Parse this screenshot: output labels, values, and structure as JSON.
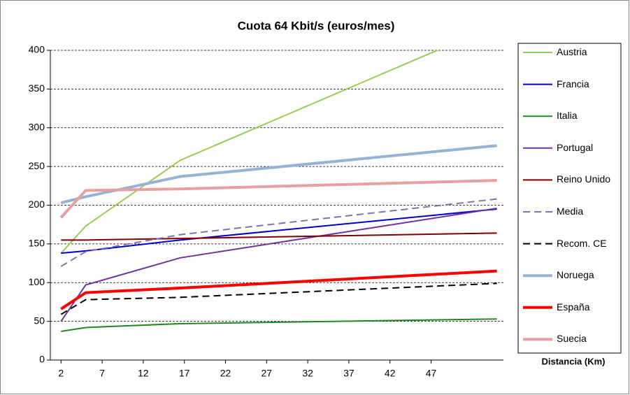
{
  "chart_data": {
    "type": "line",
    "title": "Cuota 64 Kbit/s (euros/mes)",
    "x_label": "Distancia (Km)",
    "x": [
      2,
      5,
      16.5,
      55
    ],
    "xlim": [
      0.7,
      55.8
    ],
    "xticks": [
      2,
      7,
      12,
      17,
      22,
      27,
      32,
      37,
      42,
      47
    ],
    "ylim": [
      0,
      400
    ],
    "yticks": [
      0,
      50,
      100,
      150,
      200,
      250,
      300,
      350,
      400
    ],
    "grid": true,
    "series": [
      {
        "name": "Austria",
        "color": "#99cc55",
        "linewidth": 2,
        "values": [
          138,
          173,
          258,
          433
        ]
      },
      {
        "name": "Francia",
        "color": "#0000cc",
        "linewidth": 2,
        "values": [
          138,
          141,
          155,
          195
        ]
      },
      {
        "name": "Italia",
        "color": "#1f8a1f",
        "linewidth": 2,
        "values": [
          37,
          42,
          47,
          53
        ]
      },
      {
        "name": "Portugal",
        "color": "#7030a0",
        "linewidth": 2,
        "values": [
          50,
          97,
          132,
          196
        ]
      },
      {
        "name": "Reino Unido",
        "color": "#800000",
        "linewidth": 2,
        "values": [
          155,
          155,
          157,
          164
        ]
      },
      {
        "name": "Media",
        "color": "#7777aa",
        "linewidth": 2,
        "linestyle": "dashed",
        "values": [
          121,
          140,
          162,
          208
        ]
      },
      {
        "name": "Recom. CE",
        "color": "#000000",
        "linewidth": 2,
        "linestyle": "dashed",
        "values": [
          59,
          78,
          81,
          99
        ]
      },
      {
        "name": "Noruega",
        "color": "#95b3d7",
        "linewidth": 4,
        "values": [
          203,
          211,
          237,
          277
        ]
      },
      {
        "name": "España",
        "color": "#ff0000",
        "linewidth": 4,
        "values": [
          66,
          87,
          93,
          115
        ]
      },
      {
        "name": "Suecia",
        "color": "#e6a0a0",
        "linewidth": 4,
        "values": [
          184,
          219,
          221,
          232
        ]
      }
    ]
  }
}
